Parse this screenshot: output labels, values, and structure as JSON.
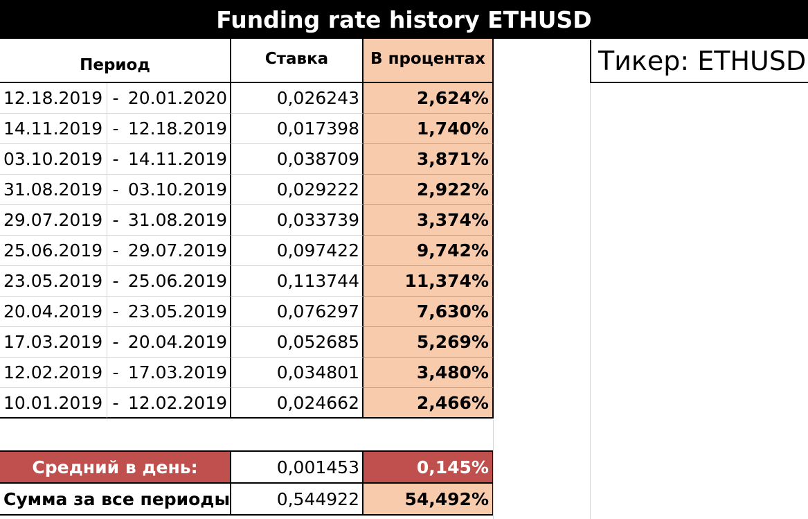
{
  "title": "Funding rate history ETHUSD",
  "ticker": "Тикер: ETHUSD",
  "headers": {
    "period": "Период",
    "rate": "Ставка",
    "percent": "В процентах"
  },
  "rows": [
    {
      "from": "12.18.2019",
      "sep": "-",
      "to": "20.01.2020",
      "rate": "0,026243",
      "percent": "2,624%"
    },
    {
      "from": "14.11.2019",
      "sep": "-",
      "to": "12.18.2019",
      "rate": "0,017398",
      "percent": "1,740%"
    },
    {
      "from": "03.10.2019",
      "sep": "-",
      "to": "14.11.2019",
      "rate": "0,038709",
      "percent": "3,871%"
    },
    {
      "from": "31.08.2019",
      "sep": "-",
      "to": "03.10.2019",
      "rate": "0,029222",
      "percent": "2,922%"
    },
    {
      "from": "29.07.2019",
      "sep": "-",
      "to": "31.08.2019",
      "rate": "0,033739",
      "percent": "3,374%"
    },
    {
      "from": "25.06.2019",
      "sep": "-",
      "to": "29.07.2019",
      "rate": "0,097422",
      "percent": "9,742%"
    },
    {
      "from": "23.05.2019",
      "sep": "-",
      "to": "25.06.2019",
      "rate": "0,113744",
      "percent": "11,374%"
    },
    {
      "from": "20.04.2019",
      "sep": "-",
      "to": "23.05.2019",
      "rate": "0,076297",
      "percent": "7,630%"
    },
    {
      "from": "17.03.2019",
      "sep": "-",
      "to": "20.04.2019",
      "rate": "0,052685",
      "percent": "5,269%"
    },
    {
      "from": "12.02.2019",
      "sep": "-",
      "to": "17.03.2019",
      "rate": "0,034801",
      "percent": "3,480%"
    },
    {
      "from": "10.01.2019",
      "sep": "-",
      "to": "12.02.2019",
      "rate": "0,024662",
      "percent": "2,466%"
    }
  ],
  "summary": {
    "avg_label": "Средний в день:",
    "avg_rate": "0,001453",
    "avg_percent": "0,145%",
    "sum_label": "Сумма за все периоды:",
    "sum_rate": "0,544922",
    "sum_percent": "54,492%"
  },
  "colors": {
    "percent_fill": "#f8cbad",
    "avg_fill": "#c0504d",
    "title_bg": "#000000"
  }
}
